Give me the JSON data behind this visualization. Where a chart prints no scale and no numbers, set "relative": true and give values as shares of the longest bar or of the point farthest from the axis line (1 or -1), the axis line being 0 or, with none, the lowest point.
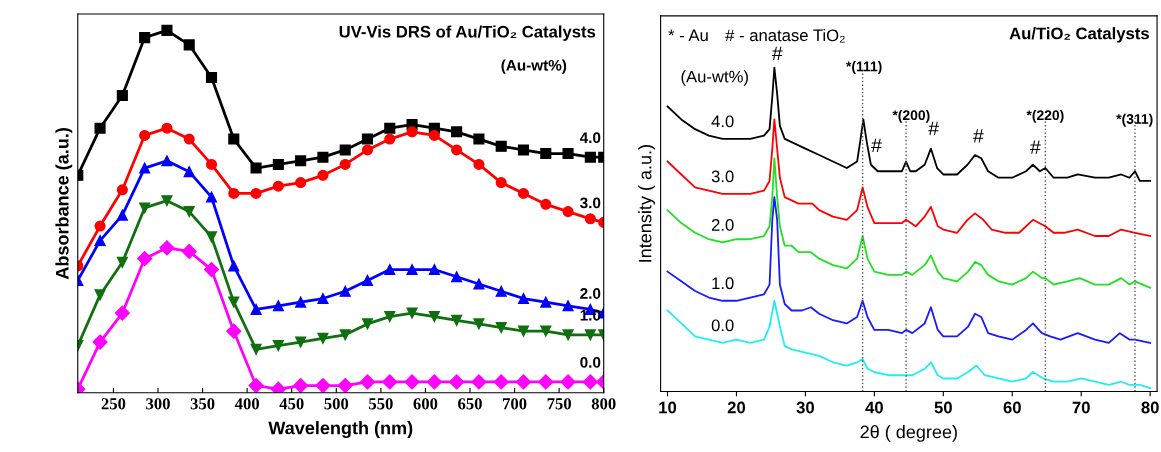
{
  "chart_data": [
    {
      "type": "line",
      "title": "UV-Vis DRS of Au/TiO₂ Catalysts",
      "xlabel": "Wavelength (nm)",
      "ylabel": "Absorbance (a.u.)",
      "annotations": [
        "(Au-wt%)"
      ],
      "relative": true,
      "tick_labels": "x",
      "legend": false,
      "grid": false,
      "line_style": "solid",
      "x": [
        210,
        235,
        260,
        285,
        310,
        335,
        360,
        385,
        410,
        435,
        460,
        485,
        510,
        535,
        560,
        585,
        610,
        635,
        660,
        685,
        710,
        735,
        760,
        785,
        800
      ],
      "xlim": [
        210,
        800
      ],
      "xticks": [
        250,
        300,
        350,
        400,
        450,
        500,
        550,
        600,
        650,
        700,
        750,
        800
      ],
      "series": [
        {
          "name": "4.0",
          "color": "#000000",
          "marker": "square",
          "values": [
            0.6,
            0.73,
            0.82,
            0.98,
            1.0,
            0.96,
            0.87,
            0.7,
            0.62,
            0.63,
            0.64,
            0.65,
            0.67,
            0.7,
            0.73,
            0.74,
            0.73,
            0.72,
            0.7,
            0.68,
            0.67,
            0.66,
            0.66,
            0.65,
            0.65
          ]
        },
        {
          "name": "3.0",
          "color": "#ff0000",
          "marker": "circle",
          "values": [
            0.35,
            0.46,
            0.56,
            0.71,
            0.73,
            0.7,
            0.63,
            0.55,
            0.55,
            0.57,
            0.58,
            0.6,
            0.63,
            0.67,
            0.7,
            0.72,
            0.71,
            0.67,
            0.63,
            0.58,
            0.55,
            0.52,
            0.5,
            0.48,
            0.47
          ]
        },
        {
          "name": "2.0",
          "color": "#0000ff",
          "marker": "triangle",
          "values": [
            0.31,
            0.42,
            0.49,
            0.62,
            0.64,
            0.61,
            0.54,
            0.35,
            0.23,
            0.24,
            0.25,
            0.26,
            0.28,
            0.31,
            0.34,
            0.34,
            0.34,
            0.32,
            0.3,
            0.28,
            0.26,
            0.25,
            0.24,
            0.23,
            0.22
          ]
        },
        {
          "name": "1.0",
          "color": "#107010",
          "marker": "triangle_down",
          "values": [
            0.13,
            0.27,
            0.36,
            0.51,
            0.53,
            0.5,
            0.43,
            0.25,
            0.12,
            0.13,
            0.14,
            0.15,
            0.16,
            0.19,
            0.21,
            0.22,
            0.21,
            0.2,
            0.19,
            0.18,
            0.17,
            0.17,
            0.16,
            0.16,
            0.16
          ]
        },
        {
          "name": "0.0",
          "color": "#ff00ff",
          "marker": "diamond",
          "values": [
            0.01,
            0.14,
            0.22,
            0.37,
            0.4,
            0.39,
            0.34,
            0.17,
            0.02,
            0.01,
            0.02,
            0.02,
            0.02,
            0.03,
            0.03,
            0.03,
            0.03,
            0.03,
            0.03,
            0.03,
            0.03,
            0.03,
            0.03,
            0.03,
            0.03
          ]
        }
      ]
    },
    {
      "type": "line",
      "title": "Au/TiO₂ Catalysts",
      "xlabel": "2θ ( degree)",
      "ylabel": "Intensity ( a.u.)",
      "relative": true,
      "tick_labels": "x",
      "legend": false,
      "grid": false,
      "line_style": "solid",
      "marker": "none",
      "xlim": [
        9,
        81
      ],
      "xticks": [
        10,
        20,
        30,
        40,
        50,
        60,
        70,
        80
      ],
      "annotations": [
        "* - Au",
        "# - anatase TiO₂",
        "(Au-wt%)",
        "#",
        "#",
        "#",
        "#",
        "#",
        "*(111)",
        "*(200)",
        "*(220)",
        "*(311)"
      ],
      "ref_lines": [
        {
          "axis": "x",
          "value": 38.3,
          "color": "#555555",
          "line_style": "dotted"
        },
        {
          "axis": "x",
          "value": 44.6,
          "color": "#555555",
          "line_style": "dotted"
        },
        {
          "axis": "x",
          "value": 64.8,
          "color": "#555555",
          "line_style": "dotted"
        },
        {
          "axis": "x",
          "value": 77.8,
          "color": "#555555",
          "line_style": "dotted"
        }
      ],
      "series": [
        {
          "name": "4.0",
          "color": "#000000",
          "x": [
            10,
            12,
            14,
            16,
            18,
            20,
            22,
            24,
            24.8,
            25.2,
            25.5,
            25.9,
            26.3,
            27,
            28,
            30,
            32,
            34,
            36,
            37.5,
            38.0,
            38.4,
            38.9,
            39.5,
            40.5,
            42,
            44,
            44.6,
            45.2,
            46,
            47.3,
            48.2,
            49.1,
            50,
            52,
            53.5,
            54.6,
            55.5,
            56.5,
            58,
            60,
            62,
            63,
            64,
            64.8,
            66,
            68,
            69.5,
            72,
            74,
            75.8,
            77,
            77.8,
            78.5,
            80
          ],
          "values": [
            0.88,
            0.84,
            0.81,
            0.79,
            0.78,
            0.78,
            0.78,
            0.79,
            0.81,
            0.91,
            1.0,
            0.92,
            0.82,
            0.78,
            0.77,
            0.75,
            0.73,
            0.71,
            0.69,
            0.71,
            0.78,
            0.84,
            0.77,
            0.7,
            0.68,
            0.68,
            0.68,
            0.71,
            0.68,
            0.68,
            0.7,
            0.75,
            0.69,
            0.67,
            0.67,
            0.7,
            0.73,
            0.72,
            0.68,
            0.66,
            0.66,
            0.68,
            0.7,
            0.68,
            0.69,
            0.66,
            0.66,
            0.67,
            0.66,
            0.66,
            0.67,
            0.66,
            0.68,
            0.65,
            0.65
          ]
        },
        {
          "name": "3.0",
          "color": "#ff0000",
          "x": [
            10,
            12,
            14,
            16,
            18,
            20,
            22,
            24,
            24.8,
            25.2,
            25.5,
            25.9,
            26.3,
            27,
            28,
            29,
            30,
            31,
            32,
            34,
            36,
            37.5,
            38.3,
            39.0,
            40,
            42,
            44,
            44.6,
            46,
            47.3,
            48.2,
            49.2,
            50,
            52,
            53.5,
            54.6,
            55.8,
            57,
            59,
            61,
            63,
            64.8,
            66,
            67.5,
            69.5,
            72,
            74,
            75.8,
            77.8,
            80
          ],
          "values": [
            0.71,
            0.67,
            0.63,
            0.62,
            0.61,
            0.61,
            0.61,
            0.62,
            0.65,
            0.75,
            0.84,
            0.75,
            0.66,
            0.6,
            0.59,
            0.58,
            0.58,
            0.58,
            0.56,
            0.54,
            0.53,
            0.56,
            0.63,
            0.57,
            0.52,
            0.52,
            0.52,
            0.53,
            0.51,
            0.54,
            0.57,
            0.51,
            0.5,
            0.49,
            0.53,
            0.55,
            0.53,
            0.5,
            0.49,
            0.49,
            0.53,
            0.51,
            0.49,
            0.49,
            0.5,
            0.48,
            0.48,
            0.5,
            0.49,
            0.48
          ]
        },
        {
          "name": "2.0",
          "color": "#22e022",
          "x": [
            10,
            12,
            14,
            16,
            18,
            20,
            22,
            24,
            24.8,
            25.2,
            25.5,
            25.9,
            26.3,
            27,
            28,
            29,
            30.8,
            32,
            34,
            36,
            37.5,
            38.3,
            39.0,
            40,
            42,
            44,
            44.6,
            45.5,
            47.3,
            48.2,
            49.2,
            50,
            52,
            53.6,
            54.6,
            55.5,
            56.5,
            58,
            60,
            62,
            63,
            64.3,
            64.8,
            66,
            68,
            69.8,
            72,
            74,
            75.8,
            77,
            77.8,
            80
          ],
          "values": [
            0.56,
            0.52,
            0.49,
            0.47,
            0.46,
            0.47,
            0.47,
            0.48,
            0.51,
            0.6,
            0.72,
            0.6,
            0.51,
            0.45,
            0.45,
            0.43,
            0.43,
            0.41,
            0.39,
            0.38,
            0.41,
            0.48,
            0.41,
            0.37,
            0.36,
            0.36,
            0.37,
            0.36,
            0.39,
            0.42,
            0.37,
            0.35,
            0.34,
            0.37,
            0.4,
            0.39,
            0.36,
            0.34,
            0.33,
            0.35,
            0.37,
            0.35,
            0.35,
            0.33,
            0.34,
            0.35,
            0.33,
            0.33,
            0.35,
            0.33,
            0.34,
            0.32
          ]
        },
        {
          "name": "1.0",
          "color": "#1a1aff",
          "x": [
            10,
            12,
            14,
            16,
            18,
            20,
            22,
            24,
            24.8,
            25.2,
            25.5,
            25.9,
            26.3,
            27,
            28,
            29.5,
            30.8,
            32,
            34,
            36,
            37.5,
            38.3,
            39.0,
            40,
            42,
            44,
            44.6,
            45.5,
            47.3,
            48.2,
            49.2,
            50,
            52,
            53.6,
            54.6,
            55.5,
            56.5,
            58,
            60,
            62,
            63,
            64.3,
            65.5,
            67,
            69.5,
            72,
            74,
            75.6,
            77,
            77.8,
            80
          ],
          "values": [
            0.37,
            0.34,
            0.31,
            0.29,
            0.28,
            0.28,
            0.29,
            0.3,
            0.33,
            0.53,
            0.6,
            0.53,
            0.33,
            0.27,
            0.25,
            0.25,
            0.26,
            0.24,
            0.22,
            0.21,
            0.23,
            0.28,
            0.23,
            0.19,
            0.19,
            0.18,
            0.19,
            0.18,
            0.21,
            0.26,
            0.19,
            0.17,
            0.17,
            0.2,
            0.24,
            0.23,
            0.18,
            0.17,
            0.16,
            0.19,
            0.21,
            0.18,
            0.17,
            0.16,
            0.18,
            0.16,
            0.15,
            0.18,
            0.16,
            0.16,
            0.15
          ]
        },
        {
          "name": "0.0",
          "color": "#22eeee",
          "x": [
            10,
            12,
            14,
            16,
            18,
            20,
            22,
            24,
            24.8,
            25.5,
            26.3,
            27,
            28,
            30,
            32,
            34,
            36,
            37.5,
            38.3,
            39.0,
            40,
            42,
            44,
            45.5,
            47.3,
            48.2,
            49.2,
            50,
            52,
            53.6,
            54.8,
            56,
            58,
            60,
            62,
            63,
            64.5,
            66,
            68,
            70,
            72,
            74,
            75.8,
            77,
            78.5,
            80
          ],
          "values": [
            0.25,
            0.21,
            0.17,
            0.16,
            0.15,
            0.16,
            0.15,
            0.16,
            0.2,
            0.28,
            0.2,
            0.14,
            0.13,
            0.12,
            0.11,
            0.09,
            0.08,
            0.09,
            0.1,
            0.07,
            0.06,
            0.05,
            0.05,
            0.05,
            0.07,
            0.09,
            0.05,
            0.04,
            0.04,
            0.06,
            0.08,
            0.05,
            0.04,
            0.03,
            0.04,
            0.06,
            0.04,
            0.03,
            0.03,
            0.04,
            0.03,
            0.02,
            0.03,
            0.02,
            0.02,
            0.01
          ]
        }
      ]
    }
  ]
}
